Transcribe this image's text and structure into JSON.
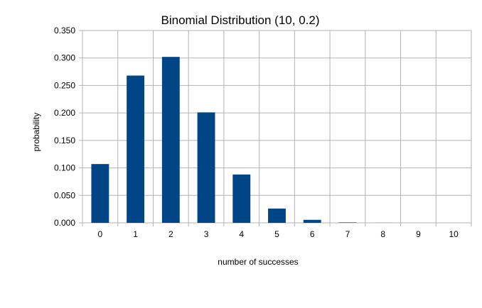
{
  "chart_data": {
    "type": "bar",
    "title": "Binomial Distribution (10, 0.2)",
    "xlabel": "number of successes",
    "ylabel": "probability",
    "categories": [
      "0",
      "1",
      "2",
      "3",
      "4",
      "5",
      "6",
      "7",
      "8",
      "9",
      "10"
    ],
    "values": [
      0.107,
      0.268,
      0.302,
      0.201,
      0.088,
      0.026,
      0.0055,
      0.0008,
      0.0001,
      0.0,
      0.0
    ],
    "ylim": [
      0,
      0.35
    ],
    "yticks": [
      "0.000",
      "0.050",
      "0.100",
      "0.150",
      "0.200",
      "0.250",
      "0.300",
      "0.350"
    ],
    "grid": true,
    "bar_color": "#004586",
    "grid_color": "#b3b3b3",
    "legend": "none"
  }
}
